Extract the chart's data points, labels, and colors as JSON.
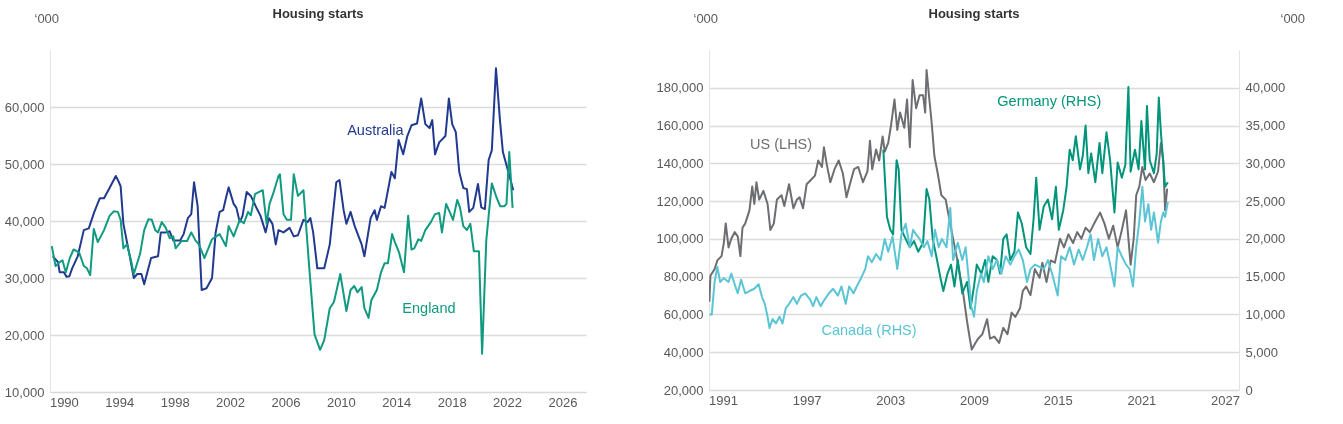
{
  "chart_data": [
    {
      "type": "line",
      "title": "Housing starts",
      "ylabel": "‘000",
      "xlim": [
        1989,
        2027.7
      ],
      "xticks": [
        1990,
        1994,
        1998,
        2002,
        2006,
        2010,
        2014,
        2018,
        2022,
        2026
      ],
      "ylim": [
        10000,
        70000
      ],
      "yticks": [
        {
          "value": 10000,
          "label": "10,000"
        },
        {
          "value": 20000,
          "label": "20,000"
        },
        {
          "value": 30000,
          "label": "30,000"
        },
        {
          "value": 40000,
          "label": "40,000"
        },
        {
          "value": 50000,
          "label": "50,000"
        },
        {
          "value": 60000,
          "label": "60,000"
        }
      ],
      "grid": "y",
      "series": [
        {
          "name": "Australia",
          "color": "#213a8f",
          "x": [
            1989.2,
            1989.57,
            1989.7,
            1990,
            1990.2,
            1990.4,
            1990.6,
            1991,
            1991.44,
            1991.8,
            1992.2,
            1992.6,
            1992.9,
            1993.3,
            1993.75,
            1993.9,
            1994.1,
            1994.3,
            1994.76,
            1995.05,
            1995.3,
            1995.6,
            1995.8,
            1996.3,
            1996.8,
            1997,
            1997.36,
            1997.64,
            1997.9,
            1998.4,
            1998.65,
            1998.95,
            1999.2,
            1999.4,
            1999.66,
            1999.95,
            2000.3,
            2000.7,
            2000.96,
            2001.25,
            2001.5,
            2001.7,
            2001.9,
            2002.26,
            2002.46,
            2002.7,
            2002.9,
            2003.2,
            2003.5,
            2003.85,
            2004.2,
            2004.57,
            2004.8,
            2005.06,
            2005.3,
            2005.5,
            2005.86,
            2006.3,
            2006.6,
            2006.9,
            2007.3,
            2007.6,
            2007.8,
            2008,
            2008.3,
            2008.8,
            2009.2,
            2009.67,
            2009.9,
            2010.2,
            2010.4,
            2010.7,
            2011,
            2011.5,
            2011.7,
            2012.15,
            2012.44,
            2012.6,
            2012.9,
            2013.16,
            2013.65,
            2013.9,
            2014.17,
            2014.5,
            2014.8,
            2015.1,
            2015.5,
            2015.8,
            2016.1,
            2016.4,
            2016.6,
            2016.8,
            2017.1,
            2017.55,
            2017.8,
            2018.04,
            2018.3,
            2018.55,
            2018.84,
            2019.1,
            2019.27,
            2019.56,
            2019.9,
            2020.14,
            2020.4,
            2020.67,
            2020.9,
            2021.2,
            2021.5,
            2021.7,
            2022.06,
            2022.45
          ],
          "values": [
            33800,
            32800,
            31000,
            31000,
            30200,
            30300,
            31700,
            33800,
            38400,
            38700,
            41600,
            44000,
            44000,
            45800,
            47900,
            47200,
            46100,
            39500,
            33800,
            30000,
            30700,
            30700,
            28900,
            33500,
            33800,
            38000,
            38000,
            38200,
            36600,
            36600,
            37700,
            40500,
            41200,
            46800,
            42600,
            27900,
            28200,
            30000,
            38000,
            41600,
            41900,
            44000,
            45900,
            43000,
            42300,
            39800,
            40900,
            45100,
            44400,
            42600,
            40900,
            38000,
            40500,
            39500,
            35900,
            38400,
            38000,
            38800,
            37300,
            37500,
            40200,
            39800,
            40500,
            38000,
            31700,
            31700,
            35900,
            46800,
            47200,
            41900,
            39500,
            41600,
            39100,
            35900,
            33800,
            40500,
            41900,
            40200,
            42600,
            42300,
            48600,
            47500,
            54200,
            51700,
            54900,
            56800,
            57100,
            61500,
            57000,
            56300,
            57700,
            51700,
            53800,
            54900,
            61500,
            57000,
            55600,
            48600,
            45800,
            45600,
            41600,
            42300,
            46500,
            42400,
            42100,
            50700,
            52400,
            66800,
            57300,
            52100,
            48900,
            45400
          ]
        },
        {
          "name": "England",
          "color": "#119a7f",
          "x": [
            1989.13,
            1989.4,
            1989.7,
            1989.9,
            1990.14,
            1990.43,
            1990.7,
            1991.1,
            1991.44,
            1991.67,
            1991.9,
            1992.16,
            1992.45,
            1992.9,
            1993.3,
            1993.6,
            1993.9,
            1994.1,
            1994.3,
            1994.55,
            1994.85,
            1995.05,
            1995.5,
            1995.8,
            1996.1,
            1996.35,
            1996.6,
            1996.8,
            1997.07,
            1997.36,
            1997.64,
            1997.9,
            1998.07,
            1998.5,
            1998.9,
            1999.2,
            1999.5,
            1999.75,
            2000.15,
            2000.5,
            2000.7,
            2001.25,
            2001.7,
            2001.9,
            2002.26,
            2002.7,
            2003,
            2003.3,
            2003.5,
            2003.8,
            2004.1,
            2004.36,
            2004.64,
            2004.85,
            2005.1,
            2005.5,
            2005.6,
            2005.86,
            2006.1,
            2006.4,
            2006.6,
            2006.9,
            2007.3,
            2007.7,
            2008.1,
            2008.5,
            2008.8,
            2009.2,
            2009.5,
            2009.96,
            2010.4,
            2010.7,
            2010.97,
            2011.2,
            2011.5,
            2011.7,
            2012,
            2012.2,
            2012.6,
            2012.9,
            2013.16,
            2013.4,
            2013.7,
            2013.9,
            2014.2,
            2014.56,
            2014.86,
            2015.1,
            2015.3,
            2015.6,
            2015.8,
            2016.1,
            2016.5,
            2016.8,
            2017.1,
            2017.3,
            2017.6,
            2017.8,
            2018.1,
            2018.4,
            2018.6,
            2018.84,
            2019.1,
            2019.35,
            2019.6,
            2019.97,
            2020.2,
            2020.5,
            2020.67,
            2020.9,
            2021.26,
            2021.5,
            2021.8,
            2021.96,
            2022.16,
            2022.4
          ],
          "values": [
            35600,
            32100,
            32800,
            33100,
            31000,
            33500,
            35000,
            34500,
            32100,
            31700,
            30500,
            38600,
            36300,
            38400,
            40900,
            41700,
            41600,
            40200,
            35200,
            35900,
            33100,
            30700,
            34200,
            38400,
            40300,
            40200,
            38400,
            38000,
            39800,
            38800,
            37000,
            37300,
            35200,
            36500,
            36500,
            38000,
            36600,
            35900,
            33500,
            35600,
            36800,
            37700,
            35600,
            39100,
            37300,
            40200,
            39600,
            41600,
            41000,
            44700,
            45100,
            45400,
            39500,
            43000,
            44700,
            47900,
            48200,
            41200,
            40200,
            40200,
            48200,
            44400,
            45400,
            32400,
            20100,
            17400,
            19100,
            24700,
            25800,
            30700,
            24200,
            27900,
            28600,
            27500,
            28400,
            24700,
            23000,
            26100,
            27900,
            31000,
            32600,
            32600,
            37700,
            36300,
            34500,
            31000,
            40900,
            35000,
            35200,
            36800,
            36500,
            38400,
            39800,
            41200,
            41400,
            38000,
            43000,
            41900,
            40200,
            43700,
            42400,
            39100,
            38400,
            39500,
            34700,
            34700,
            16700,
            36600,
            40900,
            46600,
            44000,
            42600,
            42600,
            43000,
            52100,
            42300
          ]
        }
      ]
    },
    {
      "type": "line",
      "title": "Housing starts",
      "ylabel": "‘000",
      "y2label": "‘000",
      "xlim": [
        1990,
        2028
      ],
      "xticks": [
        1991,
        1997,
        2003,
        2009,
        2015,
        2021,
        2027
      ],
      "ylim": [
        20000,
        200000
      ],
      "yticks": [
        {
          "value": 20000,
          "label": "20,000"
        },
        {
          "value": 40000,
          "label": "40,000"
        },
        {
          "value": 60000,
          "label": "60,000"
        },
        {
          "value": 80000,
          "label": "80,000"
        },
        {
          "value": 100000,
          "label": "100,000"
        },
        {
          "value": 120000,
          "label": "120,000"
        },
        {
          "value": 140000,
          "label": "140,000"
        },
        {
          "value": 160000,
          "label": "160,000"
        },
        {
          "value": 180000,
          "label": "180,000"
        }
      ],
      "y2lim": [
        0,
        45000
      ],
      "y2ticks": [
        0,
        {
          "value": 5000,
          "label": "5,000"
        },
        {
          "value": 10000,
          "label": "10,000"
        },
        {
          "value": 15000,
          "label": "15,000"
        },
        {
          "value": 20000,
          "label": "20,000"
        },
        {
          "value": 25000,
          "label": "25,000"
        },
        {
          "value": 30000,
          "label": "30,000"
        },
        {
          "value": 35000,
          "label": "35,000"
        },
        {
          "value": 40000,
          "label": "40,000"
        }
      ],
      "grid": "y",
      "series": [
        {
          "name": "US (LHS)",
          "color": "#6d6e71",
          "x": [
            1990.03,
            1990.1,
            1990.4,
            1990.6,
            1990.9,
            1991.06,
            1991.2,
            1991.4,
            1991.6,
            1991.84,
            1992.06,
            1992.25,
            1992.4,
            1992.6,
            1992.9,
            1993.1,
            1993.25,
            1993.4,
            1993.6,
            1993.9,
            1994.2,
            1994.4,
            1994.65,
            1994.87,
            1995.2,
            1995.4,
            1995.74,
            1996.05,
            1996.3,
            1996.5,
            1996.74,
            1997,
            1997.3,
            1997.6,
            1997.83,
            1998.1,
            1998.24,
            1998.45,
            1998.7,
            1999,
            1999.3,
            1999.6,
            1999.86,
            2000.1,
            2000.4,
            2000.7,
            2001.04,
            2001.36,
            2001.54,
            2001.7,
            2001.98,
            2002.2,
            2002.45,
            2002.6,
            2002.85,
            2003.07,
            2003.3,
            2003.5,
            2003.7,
            2004,
            2004.2,
            2004.4,
            2004.6,
            2004.85,
            2005.1,
            2005.35,
            2005.5,
            2005.6,
            2005.8,
            2005.97,
            2006.16,
            2006.4,
            2006.66,
            2006.97,
            2007.2,
            2007.5,
            2007.75,
            2007.97,
            2008.2,
            2008.5,
            2008.7,
            2008.84,
            2009.1,
            2009.3,
            2009.6,
            2009.94,
            2010.15,
            2010.46,
            2010.8,
            2011.1,
            2011.4,
            2011.7,
            2011.96,
            2012.3,
            2012.5,
            2012.74,
            2013.05,
            2013.36,
            2013.7,
            2013.9,
            2014.2,
            2014.5,
            2014.8,
            2015.17,
            2015.45,
            2015.77,
            2016.1,
            2016.4,
            2016.7,
            2017,
            2017.3,
            2017.7,
            2018.04,
            2018.35,
            2018.67,
            2018.98,
            2019.3,
            2019.6,
            2019.9,
            2020.23,
            2020.45,
            2020.63,
            2020.85,
            2021.07,
            2021.3,
            2021.6,
            2021.9,
            2022.2,
            2022.4,
            2022.57,
            2022.7,
            2022.85
          ],
          "values": [
            66700,
            80500,
            84000,
            88600,
            90900,
            97800,
            108200,
            95500,
            100100,
            103600,
            101300,
            90900,
            105900,
            108200,
            115100,
            127700,
            118500,
            130000,
            120800,
            125400,
            118500,
            104700,
            108200,
            120800,
            123100,
            117400,
            128900,
            116200,
            120800,
            122000,
            116200,
            128900,
            131200,
            133500,
            141500,
            138100,
            148500,
            139200,
            130000,
            136900,
            141500,
            134600,
            122000,
            128900,
            136900,
            138100,
            130000,
            135800,
            151900,
            136900,
            147300,
            141500,
            154200,
            146200,
            150800,
            161100,
            173800,
            157700,
            166900,
            158800,
            173800,
            148500,
            184100,
            169200,
            176100,
            176100,
            166900,
            189400,
            173800,
            161100,
            143900,
            134600,
            123100,
            120800,
            111600,
            100100,
            90900,
            81700,
            72500,
            56400,
            47200,
            41400,
            44900,
            47200,
            49500,
            57500,
            47200,
            48300,
            44900,
            52900,
            49500,
            61000,
            58700,
            63300,
            72500,
            74800,
            70200,
            84000,
            79400,
            87400,
            77100,
            88600,
            87400,
            100100,
            95500,
            102400,
            97800,
            103600,
            100100,
            105900,
            103600,
            109300,
            113900,
            108200,
            100100,
            107000,
            95500,
            104700,
            115100,
            86300,
            100100,
            123100,
            127700,
            138100,
            131200,
            134600,
            130000,
            135800,
            150800,
            141500,
            115100,
            126600
          ]
        },
        {
          "name": "Germany (RHS)",
          "color": "#00957a",
          "axis": "y2",
          "x": [
            2002.5,
            2002.76,
            2003,
            2003.2,
            2003.45,
            2003.6,
            2003.8,
            2004.1,
            2004.4,
            2004.7,
            2005,
            2005.35,
            2005.6,
            2005.8,
            2006.04,
            2006.35,
            2006.6,
            2006.8,
            2007.1,
            2007.35,
            2007.6,
            2007.84,
            2008.16,
            2008.5,
            2008.75,
            2009,
            2009.2,
            2009.53,
            2009.8,
            2010.03,
            2010.34,
            2010.65,
            2010.87,
            2011.1,
            2011.34,
            2011.6,
            2011.9,
            2012.15,
            2012.43,
            2012.74,
            2013.05,
            2013.27,
            2013.46,
            2013.7,
            2014,
            2014.3,
            2014.6,
            2014.87,
            2015.08,
            2015.4,
            2015.64,
            2015.86,
            2016.08,
            2016.3,
            2016.6,
            2016.8,
            2017,
            2017.2,
            2017.4,
            2017.7,
            2018,
            2018.2,
            2018.5,
            2018.76,
            2019.07,
            2019.3,
            2019.6,
            2019.85,
            2020.07,
            2020.23,
            2020.54,
            2020.8,
            2021,
            2021.26,
            2021.4,
            2021.6,
            2021.9,
            2022.1,
            2022.25,
            2022.4,
            2022.57,
            2022.7,
            2022.9
          ],
          "values": [
            31800,
            22900,
            21200,
            20600,
            30400,
            29200,
            21200,
            20000,
            18900,
            19700,
            18300,
            19500,
            26600,
            25200,
            20000,
            17200,
            14800,
            13100,
            15400,
            16600,
            13700,
            17200,
            12800,
            14300,
            10800,
            13700,
            16600,
            15400,
            17200,
            14300,
            17700,
            17200,
            15400,
            20000,
            20600,
            17200,
            18300,
            23500,
            22000,
            18900,
            18000,
            22600,
            28100,
            21200,
            24300,
            25200,
            22600,
            26900,
            21200,
            23800,
            26900,
            31800,
            30400,
            33600,
            29200,
            31000,
            35000,
            28700,
            31300,
            27500,
            32700,
            28700,
            34100,
            30400,
            23500,
            30100,
            28100,
            29800,
            40100,
            28900,
            31800,
            29200,
            35600,
            29200,
            37600,
            30400,
            28700,
            31300,
            38700,
            34100,
            30100,
            26900,
            27500
          ]
        },
        {
          "name": "Canada (RHS)",
          "color": "#5bc5d6",
          "axis": "y2",
          "x": [
            1990.03,
            1990.2,
            1990.4,
            1990.6,
            1990.8,
            1991.06,
            1991.4,
            1991.6,
            1991.84,
            1992.06,
            1992.3,
            1992.6,
            1992.9,
            1993.25,
            1993.56,
            1993.8,
            1994,
            1994.2,
            1994.34,
            1994.56,
            1994.8,
            1995.05,
            1995.27,
            1995.5,
            1995.74,
            1996.05,
            1996.3,
            1996.6,
            1996.9,
            1997.24,
            1997.46,
            1997.7,
            1998,
            1998.3,
            1998.6,
            1998.9,
            1999.24,
            1999.5,
            1999.8,
            2000.05,
            2000.36,
            2000.67,
            2000.9,
            2001.2,
            2001.4,
            2001.67,
            2001.98,
            2002.3,
            2002.6,
            2002.85,
            2003.16,
            2003.5,
            2003.8,
            2004.1,
            2004.4,
            2004.63,
            2004.85,
            2005.1,
            2005.4,
            2005.66,
            2005.97,
            2006.2,
            2006.47,
            2006.7,
            2007.03,
            2007.3,
            2007.5,
            2007.84,
            2008.16,
            2008.4,
            2008.6,
            2008.8,
            2009,
            2009.2,
            2009.5,
            2009.7,
            2010.03,
            2010.34,
            2010.65,
            2010.96,
            2011.27,
            2011.6,
            2011.9,
            2012.2,
            2012.5,
            2012.8,
            2013.05,
            2013.36,
            2013.7,
            2014,
            2014.3,
            2014.6,
            2015,
            2015.24,
            2015.55,
            2015.86,
            2016.17,
            2016.5,
            2016.8,
            2017.1,
            2017.36,
            2017.6,
            2017.9,
            2018.2,
            2018.5,
            2018.76,
            2019.07,
            2019.3,
            2019.6,
            2019.9,
            2020.16,
            2020.4,
            2020.63,
            2020.85,
            2021.07,
            2021.26,
            2021.5,
            2021.7,
            2021.9,
            2022.2,
            2022.4,
            2022.57,
            2022.7,
            2022.9
          ],
          "values": [
            10000,
            10000,
            14300,
            16300,
            14300,
            14800,
            14300,
            15400,
            14000,
            12800,
            14600,
            12800,
            13100,
            13400,
            14000,
            12300,
            11400,
            9700,
            8200,
            9400,
            8800,
            9700,
            8800,
            10800,
            11400,
            12300,
            11400,
            12500,
            12800,
            12000,
            11100,
            12300,
            11100,
            12000,
            12800,
            13400,
            12500,
            13700,
            11400,
            13700,
            12800,
            14000,
            14800,
            16000,
            17700,
            16900,
            18000,
            17200,
            20000,
            18300,
            20300,
            16000,
            20600,
            22000,
            18900,
            21200,
            20600,
            20000,
            18900,
            19700,
            17700,
            21200,
            18900,
            20000,
            18900,
            24100,
            17200,
            19500,
            17200,
            18900,
            15100,
            11100,
            9700,
            13100,
            15400,
            14300,
            17700,
            16000,
            17200,
            15400,
            17700,
            16600,
            17700,
            18600,
            17200,
            14300,
            16000,
            16600,
            16300,
            16000,
            17200,
            15400,
            12500,
            17700,
            17200,
            18900,
            16600,
            18600,
            17200,
            18900,
            20600,
            17200,
            20000,
            17700,
            18900,
            16600,
            13700,
            18900,
            17700,
            16600,
            16000,
            13700,
            18900,
            22300,
            26900,
            22300,
            24600,
            21200,
            23500,
            19500,
            22300,
            23500,
            22900,
            24900
          ]
        }
      ]
    }
  ]
}
